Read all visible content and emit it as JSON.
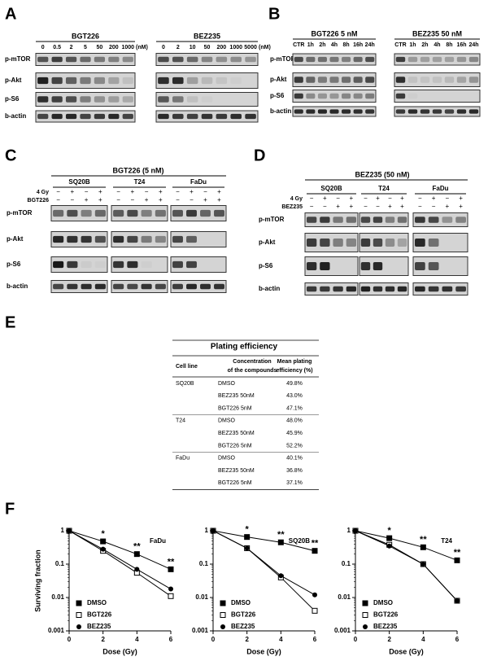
{
  "panel_labels": [
    "A",
    "B",
    "C",
    "D",
    "E",
    "F"
  ],
  "panel_a": {
    "rows": [
      "p-mTOR",
      "p-Akt",
      "p-S6",
      "b-actin"
    ],
    "groups": [
      {
        "title": "BGT226",
        "lanes": [
          "0",
          "0.5",
          "2",
          "5",
          "50",
          "200",
          "1000"
        ],
        "unit": "(nM)"
      },
      {
        "title": "BEZ235",
        "lanes": [
          "0",
          "2",
          "10",
          "50",
          "200",
          "1000",
          "5000"
        ],
        "unit": "(nM)"
      }
    ]
  },
  "panel_b": {
    "rows": [
      "p-mTOR",
      "p-Akt",
      "p-S6",
      "b-actin"
    ],
    "groups": [
      {
        "title": "BGT226 5 nM",
        "lanes": [
          "CTR",
          "1h",
          "2h",
          "4h",
          "8h",
          "16h",
          "24h"
        ]
      },
      {
        "title": "BEZ235 50 nM",
        "lanes": [
          "CTR",
          "1h",
          "2h",
          "4h",
          "8h",
          "16h",
          "24h"
        ]
      }
    ]
  },
  "panel_c": {
    "title": "BGT226 (5 nM)",
    "cell_lines": [
      "SQ20B",
      "T24",
      "FaDu"
    ],
    "treatments": [
      {
        "label": "4 Gy",
        "signs": [
          "−",
          "+",
          "−",
          "+"
        ]
      },
      {
        "label": "BGT226",
        "signs": [
          "−",
          "−",
          "+",
          "+"
        ]
      }
    ],
    "rows": [
      "p-mTOR",
      "p-Akt",
      "p-S6",
      "b-actin"
    ]
  },
  "panel_d": {
    "title": "BEZ235 (50 nM)",
    "cell_lines": [
      "SQ20B",
      "T24",
      "FaDu"
    ],
    "treatments": [
      {
        "label": "4 Gy",
        "signs": [
          "−",
          "+",
          "−",
          "+"
        ]
      },
      {
        "label": "BEZ235",
        "signs": [
          "−",
          "−",
          "+",
          "+"
        ]
      }
    ],
    "rows": [
      "p-mTOR",
      "p-Akt",
      "p-S6",
      "b-actin"
    ]
  },
  "table": {
    "title": "Plating efficiency",
    "headers": [
      [
        "Cell line"
      ],
      [
        "Concentration",
        "of the compounds"
      ],
      [
        "Mean plating",
        "efficiency (%)"
      ]
    ],
    "rows": [
      [
        "SQ20B",
        "DMSO",
        "49.8%"
      ],
      [
        "",
        "BEZ235 50nM",
        "43.0%"
      ],
      [
        "",
        "BGT226 5nM",
        "47.1%"
      ],
      [
        "T24",
        "DMSO",
        "48.0%"
      ],
      [
        "",
        "BEZ235 50nM",
        "45.9%"
      ],
      [
        "",
        "BGT226 5nM",
        "52.2%"
      ],
      [
        "FaDu",
        "DMSO",
        "40.1%"
      ],
      [
        "",
        "BEZ235 50nM",
        "36.8%"
      ],
      [
        "",
        "BGT226 5nM",
        "37.1%"
      ]
    ]
  },
  "chart_data": [
    {
      "type": "line",
      "title": "FaDu",
      "xlabel": "Dose (Gy)",
      "ylabel": "Surviving fraction",
      "x": [
        0,
        2,
        4,
        6
      ],
      "xlim": [
        0,
        6
      ],
      "ylim": [
        0.001,
        1
      ],
      "xticks": [
        0,
        2,
        4,
        6
      ],
      "yticks": [
        0.001,
        0.01,
        0.1,
        1
      ],
      "log_y": true,
      "annotations": [
        "*",
        "**",
        "**"
      ],
      "legend": "lower left",
      "series": [
        {
          "name": "DMSO",
          "color": "#000000",
          "marker": "filled-square",
          "values": [
            1,
            0.48,
            0.2,
            0.07
          ]
        },
        {
          "name": "BGT226",
          "color": "#000000",
          "marker": "open-square",
          "values": [
            1,
            0.25,
            0.055,
            0.011
          ]
        },
        {
          "name": "BEZ235",
          "color": "#000000",
          "marker": "filled-circle",
          "values": [
            1,
            0.28,
            0.07,
            0.018
          ]
        }
      ]
    },
    {
      "type": "line",
      "title": "SQ20B",
      "xlabel": "Dose (Gy)",
      "x": [
        0,
        2,
        4,
        6
      ],
      "xlim": [
        0,
        6
      ],
      "ylim": [
        0.001,
        1
      ],
      "xticks": [
        0,
        2,
        4,
        6
      ],
      "yticks": [
        0.001,
        0.01,
        0.1,
        1
      ],
      "log_y": true,
      "annotations": [
        "*",
        "**",
        "**"
      ],
      "legend": "lower left",
      "series": [
        {
          "name": "DMSO",
          "color": "#000000",
          "marker": "filled-square",
          "values": [
            1,
            0.65,
            0.45,
            0.25
          ]
        },
        {
          "name": "BGT226",
          "color": "#000000",
          "marker": "open-square",
          "values": [
            1,
            0.3,
            0.04,
            0.004
          ]
        },
        {
          "name": "BEZ235",
          "color": "#000000",
          "marker": "filled-circle",
          "values": [
            1,
            0.3,
            0.045,
            0.012
          ]
        }
      ]
    },
    {
      "type": "line",
      "title": "T24",
      "xlabel": "Dose (Gy)",
      "x": [
        0,
        2,
        4,
        6
      ],
      "xlim": [
        0,
        6
      ],
      "ylim": [
        0.001,
        1
      ],
      "xticks": [
        0,
        2,
        4,
        6
      ],
      "yticks": [
        0.001,
        0.01,
        0.1,
        1
      ],
      "log_y": true,
      "annotations": [
        "*",
        "**",
        "**"
      ],
      "legend": "lower left",
      "series": [
        {
          "name": "DMSO",
          "color": "#000000",
          "marker": "filled-square",
          "values": [
            1,
            0.6,
            0.32,
            0.13
          ]
        },
        {
          "name": "BGT226",
          "color": "#000000",
          "marker": "open-square",
          "values": [
            1,
            0.38,
            0.1,
            0.008
          ]
        },
        {
          "name": "BEZ235",
          "color": "#000000",
          "marker": "filled-circle",
          "values": [
            1,
            0.35,
            0.1,
            0.008
          ]
        }
      ]
    }
  ]
}
